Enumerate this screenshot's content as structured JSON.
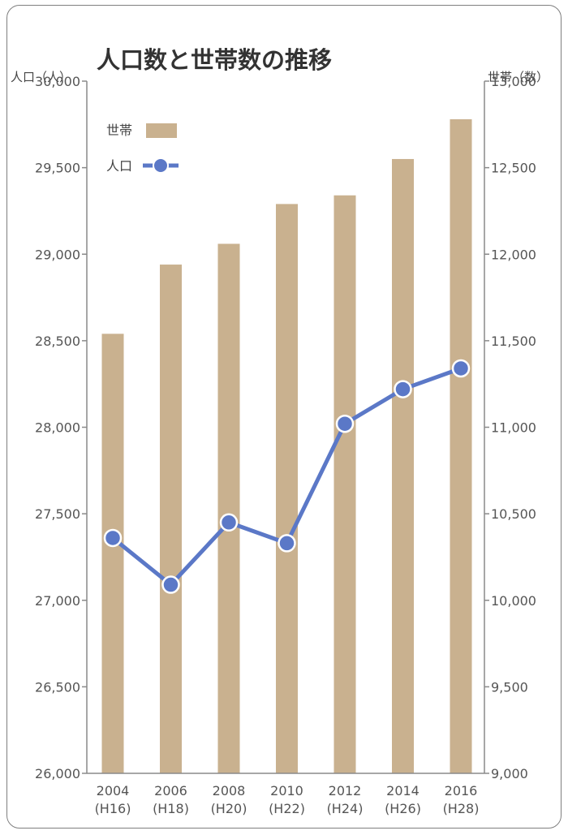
{
  "chart_data": {
    "type": "bar",
    "title": "人口数と世帯数の推移",
    "ylabel_left": "人口（人）",
    "ylabel_right": "世帯（数）",
    "categories": [
      "2004",
      "2006",
      "2008",
      "2010",
      "2012",
      "2014",
      "2016"
    ],
    "categories_sub": [
      "(H16)",
      "(H18)",
      "(H20)",
      "(H22)",
      "(H24)",
      "(H26)",
      "(H28)"
    ],
    "ylim_left": [
      26000,
      30000
    ],
    "yticks_left": [
      "26,000",
      "26,500",
      "27,000",
      "27,500",
      "28,000",
      "28,500",
      "29,000",
      "29,500",
      "30,000"
    ],
    "ylim_right": [
      9000,
      13000
    ],
    "yticks_right": [
      "9,000",
      "9,500",
      "10,000",
      "10,500",
      "11,000",
      "11,500",
      "12,000",
      "12,500",
      "13,000"
    ],
    "series": [
      {
        "name": "世帯",
        "type": "bar",
        "axis": "right",
        "color": "#c9b18f",
        "values": [
          11540,
          11940,
          12060,
          12290,
          12340,
          12550,
          12780
        ]
      },
      {
        "name": "人口",
        "type": "line",
        "axis": "left",
        "color": "#5b78c7",
        "values": [
          27360,
          27090,
          27450,
          27330,
          28020,
          28220,
          28340
        ]
      }
    ],
    "legend": "top-left",
    "grid": false
  }
}
